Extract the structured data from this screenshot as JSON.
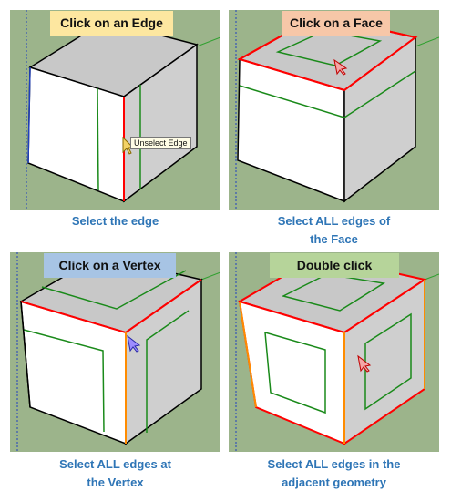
{
  "panels": [
    {
      "banner": "Click on an Edge",
      "caption_line1": "Select the edge",
      "caption_line2": "",
      "banner_color": "#fde7a0",
      "tooltip": "Unselect Edge"
    },
    {
      "banner": "Click on a Face",
      "caption_line1": "Select ALL edges of",
      "caption_line2": "the Face",
      "banner_color": "#f7c7a8"
    },
    {
      "banner": "Click on a Vertex",
      "caption_line1": "Select ALL edges at",
      "caption_line2": "the Vertex",
      "banner_color": "#a7c4e4"
    },
    {
      "banner": "Double click",
      "caption_line1": "Select ALL edges in the",
      "caption_line2": "adjacent geometry",
      "banner_color": "#b6d49a"
    }
  ],
  "colors": {
    "background": "#9cb48b",
    "cube_top": "#c8c8c8",
    "cube_front": "#ffffff",
    "cube_side": "#cfcfcf",
    "edge": "#000000",
    "selected_edge": "#ff0000",
    "vertex_edge": "#ff8c00",
    "inner_line": "#1a8a1a",
    "caption_text": "#2e75b6",
    "axis_blue": "#1f3fbf",
    "axis_green": "#2fa02f"
  },
  "icons": [
    "arrow-cursor-icon"
  ]
}
